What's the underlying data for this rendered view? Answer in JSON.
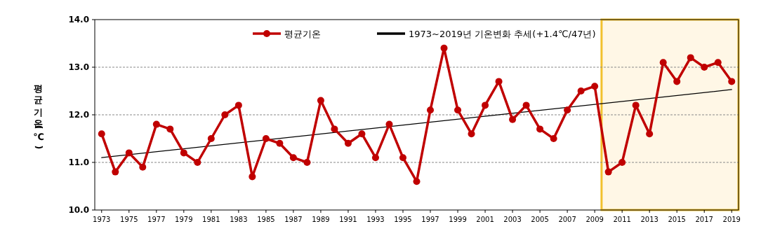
{
  "chart_data": {
    "type": "line",
    "ylabel": "평균기온(℃)",
    "x": [
      1973,
      1974,
      1975,
      1976,
      1977,
      1978,
      1979,
      1980,
      1981,
      1982,
      1983,
      1984,
      1985,
      1986,
      1987,
      1988,
      1989,
      1990,
      1991,
      1992,
      1993,
      1994,
      1995,
      1996,
      1997,
      1998,
      1999,
      2000,
      2001,
      2002,
      2003,
      2004,
      2005,
      2006,
      2007,
      2008,
      2009,
      2010,
      2011,
      2012,
      2013,
      2014,
      2015,
      2016,
      2017,
      2018,
      2019
    ],
    "series": [
      {
        "name": "평균기온",
        "color": "#c00000",
        "marker": "circle",
        "values": [
          11.6,
          10.8,
          11.2,
          10.9,
          11.8,
          11.7,
          11.2,
          11.0,
          11.5,
          12.0,
          12.2,
          10.7,
          11.5,
          11.4,
          11.1,
          11.0,
          12.3,
          11.7,
          11.4,
          11.6,
          11.1,
          11.8,
          11.1,
          10.6,
          12.1,
          13.4,
          12.1,
          11.6,
          12.2,
          12.7,
          11.9,
          12.2,
          11.7,
          11.5,
          12.1,
          12.5,
          12.6,
          10.8,
          11.0,
          12.2,
          11.6,
          13.1,
          12.7,
          13.2,
          13.0,
          13.1,
          12.7
        ]
      },
      {
        "name": "1973~2019년 기온변화 추세(+1.4℃/47년)",
        "color": "#000000",
        "marker": "none",
        "x": [
          1973,
          2019
        ],
        "values": [
          11.1,
          12.53
        ]
      }
    ],
    "xlim": [
      1972.5,
      2019.5
    ],
    "xticks": [
      1973,
      1975,
      1977,
      1979,
      1981,
      1983,
      1985,
      1987,
      1989,
      1991,
      1993,
      1995,
      1997,
      1999,
      2001,
      2003,
      2005,
      2007,
      2009,
      2011,
      2013,
      2015,
      2017,
      2019
    ],
    "ylim": [
      10.0,
      14.0
    ],
    "yticks": [
      {
        "value": 10,
        "label": "10.0"
      },
      {
        "value": 11,
        "label": "11.0"
      },
      {
        "value": 12,
        "label": "12.0"
      },
      {
        "value": 13,
        "label": "13.0"
      },
      {
        "value": 14,
        "label": "14.0"
      }
    ],
    "bands": [
      {
        "axis": "x",
        "from": 2009.5,
        "to": 2019.5,
        "color": "#fff7e6"
      }
    ],
    "grid": "y",
    "legend": "top"
  }
}
